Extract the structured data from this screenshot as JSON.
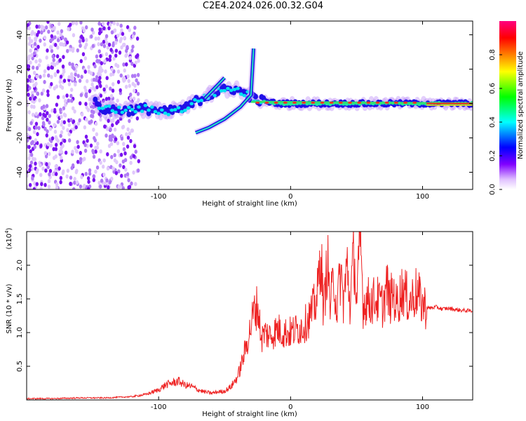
{
  "title": "C2E4.2024.026.00.32.G04",
  "chart_data": [
    {
      "type": "heatmap",
      "xlabel": "Height of straight line (km)",
      "ylabel": "Frequency (Hz)",
      "xlim": [
        -200,
        138
      ],
      "ylim": [
        -50,
        48
      ],
      "xticks": [
        -100,
        0,
        100
      ],
      "yticks": [
        40,
        20,
        0,
        -20,
        -40
      ],
      "colorbar": {
        "label": "Normalized spectral amplitude",
        "range": [
          0,
          1
        ],
        "ticks": [
          0.0,
          0.2,
          0.4,
          0.6,
          0.8
        ],
        "colors": [
          "#ffffff",
          "#e0c0ff",
          "#8000ff",
          "#0000ff",
          "#00ffff",
          "#00ff00",
          "#ffff00",
          "#ff8000",
          "#ff0000",
          "#ff0080"
        ]
      },
      "ridge": [
        {
          "x": -145,
          "y": -3
        },
        {
          "x": -125,
          "y": -4
        },
        {
          "x": -110,
          "y": -3
        },
        {
          "x": -95,
          "y": -5
        },
        {
          "x": -80,
          "y": -3
        },
        {
          "x": -70,
          "y": 2
        },
        {
          "x": -55,
          "y": 7
        },
        {
          "x": -45,
          "y": 9
        },
        {
          "x": -35,
          "y": 6
        },
        {
          "x": -25,
          "y": 2
        },
        {
          "x": -10,
          "y": 0
        },
        {
          "x": 0,
          "y": 0
        },
        {
          "x": 50,
          "y": 0
        },
        {
          "x": 100,
          "y": 0
        },
        {
          "x": 138,
          "y": 0
        }
      ],
      "branches": [
        {
          "name": "",
          "points": [
            {
              "x": -72,
              "y": -17
            },
            {
              "x": -62,
              "y": -14
            },
            {
              "x": -50,
              "y": -9
            },
            {
              "x": -38,
              "y": -2
            },
            {
              "x": -30,
              "y": 5
            },
            {
              "x": -28,
              "y": 32
            }
          ]
        },
        {
          "name": "",
          "points": [
            {
              "x": -65,
              "y": 3
            },
            {
              "x": -50,
              "y": 15
            }
          ]
        }
      ]
    },
    {
      "type": "line",
      "xlabel": "Height of straight line (km)",
      "ylabel": "SNR (10 * v/v)",
      "multiplier": "(x10",
      "multiplier_exp": "4",
      "multiplier_close": ")",
      "xlim": [
        -200,
        138
      ],
      "ylim": [
        0,
        2.5
      ],
      "xticks": [
        -100,
        0,
        100
      ],
      "yticks": [
        0.5,
        1.0,
        1.5,
        2.0
      ],
      "series": [
        {
          "name": "",
          "color": "#ee2222",
          "x": [
            -200,
            -180,
            -160,
            -140,
            -120,
            -110,
            -100,
            -95,
            -90,
            -85,
            -80,
            -75,
            -70,
            -65,
            -60,
            -55,
            -50,
            -45,
            -40,
            -37,
            -35,
            -33,
            -30,
            -28,
            -25,
            -22,
            -20,
            -15,
            -10,
            -5,
            0,
            5,
            10,
            15,
            20,
            23,
            25,
            28,
            30,
            33,
            35,
            38,
            40,
            43,
            45,
            48,
            50,
            53,
            55,
            58,
            60,
            65,
            70,
            73,
            75,
            78,
            80,
            85,
            90,
            95,
            100,
            103,
            105,
            110,
            115,
            120,
            125,
            130,
            138
          ],
          "y": [
            0.02,
            0.02,
            0.03,
            0.03,
            0.05,
            0.08,
            0.15,
            0.22,
            0.25,
            0.28,
            0.22,
            0.2,
            0.15,
            0.12,
            0.1,
            0.12,
            0.13,
            0.2,
            0.35,
            0.55,
            0.7,
            0.85,
            1.1,
            1.3,
            1.4,
            0.9,
            1.0,
            0.95,
            1.05,
            1.0,
            1.0,
            1.05,
            1.1,
            1.25,
            1.5,
            2.2,
            1.3,
            2.1,
            1.4,
            1.8,
            1.35,
            1.9,
            1.45,
            2.0,
            1.4,
            2.2,
            1.45,
            2.4,
            1.4,
            1.5,
            1.45,
            1.5,
            1.4,
            1.7,
            1.45,
            1.6,
            1.4,
            1.65,
            1.45,
            1.6,
            1.42,
            1.38,
            1.36,
            1.38,
            1.35,
            1.36,
            1.34,
            1.33,
            1.32
          ]
        }
      ]
    }
  ]
}
